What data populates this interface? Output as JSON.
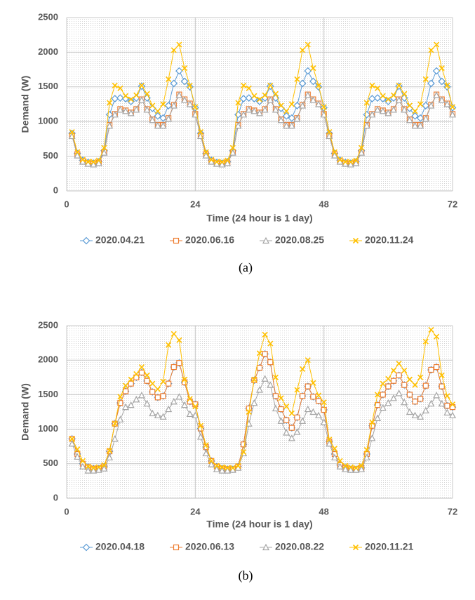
{
  "chart_data": [
    {
      "type": "line",
      "xlabel": "Time (24 hour is 1 day)",
      "ylabel": "Demand (W)",
      "caption": "(a)",
      "xlim": [
        0,
        72
      ],
      "xticks": [
        0,
        24,
        48,
        72
      ],
      "ylim": [
        0,
        2500
      ],
      "yticks": [
        0,
        500,
        1000,
        1500,
        2000,
        2500
      ],
      "grid": true,
      "x": [
        1,
        2,
        3,
        4,
        5,
        6,
        7,
        8,
        9,
        10,
        11,
        12,
        13,
        14,
        15,
        16,
        17,
        18,
        19,
        20,
        21,
        22,
        23,
        24,
        25,
        26,
        27,
        28,
        29,
        30,
        31,
        32,
        33,
        34,
        35,
        36,
        37,
        38,
        39,
        40,
        41,
        42,
        43,
        44,
        45,
        46,
        47,
        48,
        49,
        50,
        51,
        52,
        53,
        54,
        55,
        56,
        57,
        58,
        59,
        60,
        61,
        62,
        63,
        64,
        65,
        66,
        67,
        68,
        69,
        70,
        71,
        72
      ],
      "series": [
        {
          "name": "2020.04.21",
          "color": "#5b9bd5",
          "marker": "diamond",
          "values": [
            830,
            540,
            440,
            410,
            400,
            420,
            580,
            1100,
            1330,
            1340,
            1330,
            1290,
            1340,
            1510,
            1340,
            1190,
            1080,
            1050,
            1230,
            1550,
            1730,
            1580,
            1500,
            1200,
            830,
            540,
            440,
            410,
            400,
            420,
            580,
            1100,
            1330,
            1340,
            1330,
            1290,
            1340,
            1510,
            1340,
            1190,
            1080,
            1050,
            1230,
            1550,
            1730,
            1580,
            1500,
            1200,
            830,
            540,
            440,
            410,
            400,
            420,
            580,
            1100,
            1330,
            1340,
            1330,
            1290,
            1340,
            1510,
            1340,
            1190,
            1080,
            1050,
            1230,
            1550,
            1730,
            1580,
            1500,
            1200
          ]
        },
        {
          "name": "2020.06.16",
          "color": "#ed7d31",
          "marker": "square",
          "values": [
            800,
            530,
            430,
            400,
            390,
            410,
            560,
            950,
            1110,
            1180,
            1160,
            1130,
            1180,
            1320,
            1180,
            1030,
            950,
            950,
            1050,
            1240,
            1390,
            1320,
            1260,
            1110,
            800,
            530,
            430,
            400,
            390,
            410,
            560,
            950,
            1110,
            1180,
            1160,
            1130,
            1180,
            1320,
            1180,
            1030,
            950,
            950,
            1050,
            1240,
            1390,
            1320,
            1260,
            1110,
            800,
            530,
            430,
            400,
            390,
            410,
            560,
            950,
            1110,
            1180,
            1160,
            1130,
            1180,
            1320,
            1180,
            1030,
            950,
            950,
            1050,
            1240,
            1390,
            1320,
            1260,
            1110
          ]
        },
        {
          "name": "2020.08.25",
          "color": "#a5a5a5",
          "marker": "triangle",
          "values": [
            790,
            510,
            420,
            390,
            380,
            400,
            550,
            940,
            1100,
            1170,
            1150,
            1120,
            1170,
            1310,
            1170,
            1020,
            940,
            940,
            1040,
            1230,
            1380,
            1310,
            1250,
            1100,
            790,
            510,
            420,
            390,
            380,
            400,
            550,
            940,
            1100,
            1170,
            1150,
            1120,
            1170,
            1310,
            1170,
            1020,
            940,
            940,
            1040,
            1230,
            1380,
            1310,
            1250,
            1100,
            790,
            510,
            420,
            390,
            380,
            400,
            550,
            940,
            1100,
            1170,
            1150,
            1120,
            1170,
            1310,
            1170,
            1020,
            940,
            940,
            1040,
            1230,
            1380,
            1310,
            1250,
            1100
          ]
        },
        {
          "name": "2020.11.24",
          "color": "#ffc000",
          "marker": "x",
          "values": [
            850,
            560,
            450,
            420,
            420,
            440,
            620,
            1270,
            1520,
            1480,
            1370,
            1320,
            1380,
            1520,
            1400,
            1230,
            1150,
            1250,
            1610,
            2030,
            2110,
            1770,
            1520,
            1210,
            850,
            560,
            450,
            420,
            420,
            440,
            620,
            1270,
            1520,
            1480,
            1370,
            1320,
            1380,
            1520,
            1400,
            1230,
            1150,
            1250,
            1610,
            2030,
            2110,
            1770,
            1520,
            1210,
            850,
            560,
            450,
            420,
            420,
            440,
            620,
            1270,
            1520,
            1480,
            1370,
            1320,
            1380,
            1520,
            1400,
            1230,
            1150,
            1250,
            1610,
            2030,
            2110,
            1770,
            1520,
            1210
          ]
        }
      ]
    },
    {
      "type": "line",
      "xlabel": "Time (24 hour is 1 day)",
      "ylabel": "Demand (W)",
      "caption": "(b)",
      "xlim": [
        0,
        72
      ],
      "xticks": [
        0,
        24,
        48,
        72
      ],
      "ylim": [
        0,
        2500
      ],
      "yticks": [
        0,
        500,
        1000,
        1500,
        2000,
        2500
      ],
      "grid": true,
      "x": [
        1,
        2,
        3,
        4,
        5,
        6,
        7,
        8,
        9,
        10,
        11,
        12,
        13,
        14,
        15,
        16,
        17,
        18,
        19,
        20,
        21,
        22,
        23,
        24,
        25,
        26,
        27,
        28,
        29,
        30,
        31,
        32,
        33,
        34,
        35,
        36,
        37,
        38,
        39,
        40,
        41,
        42,
        43,
        44,
        45,
        46,
        47,
        48,
        49,
        50,
        51,
        52,
        53,
        54,
        55,
        56,
        57,
        58,
        59,
        60,
        61,
        62,
        63,
        64,
        65,
        66,
        67,
        68,
        69,
        70,
        71,
        72
      ],
      "series": [
        {
          "name": "2020.04.18",
          "color": "#5b9bd5",
          "marker": "diamond",
          "values": [
            860,
            640,
            500,
            450,
            430,
            430,
            460,
            680,
            1080,
            1380,
            1550,
            1660,
            1750,
            1820,
            1700,
            1540,
            1460,
            1480,
            1660,
            1900,
            1960,
            1680,
            1400,
            1360,
            1010,
            740,
            540,
            460,
            430,
            420,
            420,
            460,
            780,
            1300,
            1710,
            1890,
            2090,
            1970,
            1480,
            1290,
            1130,
            1020,
            1170,
            1480,
            1620,
            1470,
            1410,
            1280,
            820,
            640,
            480,
            440,
            420,
            420,
            440,
            640,
            1050,
            1350,
            1500,
            1620,
            1700,
            1780,
            1640,
            1500,
            1400,
            1440,
            1630,
            1860,
            1900,
            1620,
            1340,
            1320
          ]
        },
        {
          "name": "2020.06.13",
          "color": "#ed7d31",
          "marker": "square",
          "values": [
            860,
            640,
            500,
            450,
            430,
            430,
            460,
            680,
            1080,
            1380,
            1550,
            1660,
            1750,
            1820,
            1700,
            1540,
            1460,
            1480,
            1660,
            1900,
            1960,
            1680,
            1400,
            1360,
            1010,
            740,
            540,
            460,
            430,
            420,
            420,
            460,
            780,
            1300,
            1710,
            1890,
            2090,
            1970,
            1480,
            1290,
            1130,
            1020,
            1170,
            1480,
            1620,
            1470,
            1410,
            1280,
            820,
            640,
            480,
            440,
            420,
            420,
            440,
            640,
            1050,
            1350,
            1500,
            1620,
            1700,
            1780,
            1640,
            1500,
            1400,
            1440,
            1630,
            1860,
            1900,
            1620,
            1340,
            1320
          ]
        },
        {
          "name": "2020.08.22",
          "color": "#a5a5a5",
          "marker": "triangle",
          "values": [
            790,
            600,
            460,
            400,
            400,
            410,
            430,
            590,
            860,
            1140,
            1320,
            1350,
            1430,
            1490,
            1370,
            1230,
            1200,
            1180,
            1290,
            1400,
            1470,
            1350,
            1220,
            1200,
            890,
            650,
            490,
            420,
            400,
            400,
            410,
            440,
            650,
            1080,
            1380,
            1570,
            1730,
            1640,
            1300,
            1120,
            950,
            870,
            960,
            1120,
            1290,
            1250,
            1200,
            1100,
            790,
            590,
            460,
            420,
            410,
            410,
            420,
            590,
            870,
            1160,
            1310,
            1380,
            1450,
            1520,
            1390,
            1250,
            1200,
            1180,
            1270,
            1370,
            1490,
            1370,
            1240,
            1200
          ]
        },
        {
          "name": "2020.11.21",
          "color": "#ffc000",
          "marker": "x",
          "values": [
            860,
            710,
            540,
            460,
            440,
            450,
            480,
            690,
            1080,
            1470,
            1630,
            1720,
            1800,
            1900,
            1780,
            1660,
            1580,
            1690,
            2220,
            2380,
            2290,
            1720,
            1440,
            1330,
            1050,
            770,
            540,
            470,
            450,
            440,
            440,
            470,
            670,
            1250,
            1720,
            2100,
            2370,
            2240,
            1750,
            1450,
            1330,
            1230,
            1570,
            1870,
            2000,
            1670,
            1490,
            1390,
            850,
            720,
            540,
            470,
            450,
            440,
            470,
            700,
            1100,
            1500,
            1660,
            1730,
            1850,
            1950,
            1850,
            1720,
            1640,
            1750,
            2270,
            2440,
            2340,
            1780,
            1480,
            1360
          ]
        }
      ]
    }
  ]
}
